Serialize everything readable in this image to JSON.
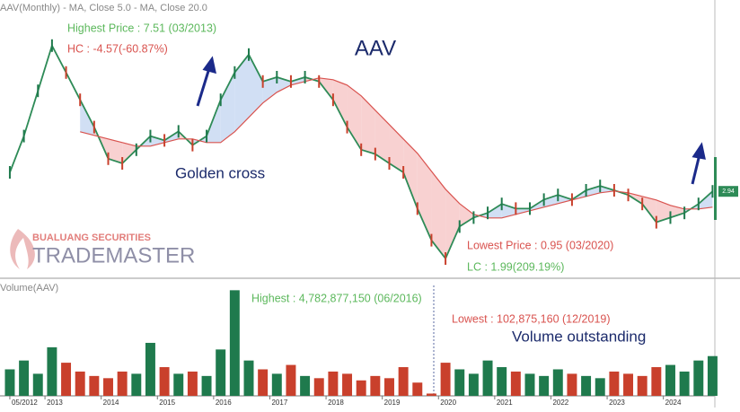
{
  "header": "AAV(Monthly) - MA, Close 5.0 - MA, Close 20.0",
  "volume_header": "Volume(AAV)",
  "watermark": {
    "line1": "BUALUANG SECURITIES",
    "line2": "TRADEMASTER"
  },
  "chart_data": [
    {
      "type": "line",
      "title": "AAV",
      "x": [
        2012.375,
        2012.625,
        2012.875,
        2013.125,
        2013.375,
        2013.625,
        2013.875,
        2014.125,
        2014.375,
        2014.625,
        2014.875,
        2015.125,
        2015.375,
        2015.625,
        2015.875,
        2016.125,
        2016.375,
        2016.625,
        2016.875,
        2017.125,
        2017.375,
        2017.625,
        2017.875,
        2018.125,
        2018.375,
        2018.625,
        2018.875,
        2019.125,
        2019.375,
        2019.625,
        2019.875,
        2020.125,
        2020.375,
        2020.625,
        2020.875,
        2021.125,
        2021.375,
        2021.625,
        2021.875,
        2022.125,
        2022.375,
        2022.625,
        2022.875,
        2023.125,
        2023.375,
        2023.625,
        2023.875,
        2024.125,
        2024.375,
        2024.625,
        2024.875
      ],
      "series": [
        {
          "color": "#2e8b57",
          "values": [
            3.47,
            4.48,
            5.74,
            7.0,
            6.25,
            5.49,
            4.73,
            3.85,
            3.72,
            4.1,
            4.48,
            4.36,
            4.61,
            4.23,
            4.48,
            5.49,
            6.25,
            6.75,
            6.0,
            6.12,
            6.0,
            6.12,
            6.0,
            5.49,
            4.73,
            4.1,
            3.98,
            3.72,
            3.47,
            2.46,
            1.58,
            1.07,
            1.96,
            2.21,
            2.34,
            2.59,
            2.46,
            2.46,
            2.71,
            2.84,
            2.71,
            2.97,
            3.09,
            2.97,
            2.84,
            2.59,
            2.08,
            2.21,
            2.34,
            2.59,
            2.94
          ]
        },
        {
          "name": "MA, Close 20.0",
          "color": "#d9534f",
          "values": [
            null,
            null,
            null,
            null,
            null,
            4.6,
            4.5,
            4.4,
            4.3,
            4.2,
            4.2,
            4.3,
            4.4,
            4.4,
            4.3,
            4.3,
            4.6,
            5.0,
            5.4,
            5.7,
            5.9,
            6.0,
            6.1,
            6.05,
            5.9,
            5.6,
            5.2,
            4.8,
            4.4,
            4.0,
            3.5,
            3.0,
            2.6,
            2.3,
            2.2,
            2.2,
            2.3,
            2.4,
            2.5,
            2.6,
            2.7,
            2.8,
            2.9,
            2.95,
            2.9,
            2.8,
            2.7,
            2.55,
            2.45,
            2.45,
            2.5
          ]
        }
      ],
      "fill_below_color": "#f7c9c9",
      "fill_above_color": "#c9d9f2",
      "xlim": [
        2012.2,
        2024.9
      ],
      "ylim": [
        0.57,
        8.27
      ],
      "xticks": [
        {
          "value": 2012.375,
          "label": "05/2012"
        },
        2013,
        2014,
        2015,
        2016,
        2017,
        2018,
        2019,
        2020,
        2021,
        2022,
        2023,
        2024
      ],
      "annotations": {
        "highest": "Highest Price : 7.51 (03/2013)",
        "hc": "HC : -4.57(-60.87%)",
        "golden_cross": "Golden cross",
        "lowest": "Lowest Price : 0.95 (03/2020)",
        "lc": "LC : 1.99(209.19%)"
      }
    },
    {
      "type": "bar",
      "x": [
        2012.375,
        2012.625,
        2012.875,
        2013.125,
        2013.375,
        2013.625,
        2013.875,
        2014.125,
        2014.375,
        2014.625,
        2014.875,
        2015.125,
        2015.375,
        2015.625,
        2015.875,
        2016.125,
        2016.375,
        2016.625,
        2016.875,
        2017.125,
        2017.375,
        2017.625,
        2017.875,
        2018.125,
        2018.375,
        2018.625,
        2018.875,
        2019.125,
        2019.375,
        2019.625,
        2019.875,
        2020.125,
        2020.375,
        2020.625,
        2020.875,
        2021.125,
        2021.375,
        2021.625,
        2021.875,
        2022.125,
        2022.375,
        2022.625,
        2022.875,
        2023.125,
        2023.375,
        2023.625,
        2023.875,
        2024.125,
        2024.375,
        2024.625,
        2024.875
      ],
      "values": [
        1200000000,
        1600000000,
        1000000000,
        2200000000,
        1500000000,
        1100000000,
        900000000,
        800000000,
        1100000000,
        1000000000,
        2400000000,
        1300000000,
        1000000000,
        1100000000,
        900000000,
        2100000000,
        4782877150,
        1600000000,
        1200000000,
        1000000000,
        1400000000,
        900000000,
        800000000,
        1100000000,
        1000000000,
        700000000,
        900000000,
        800000000,
        1300000000,
        600000000,
        102875160,
        1500000000,
        1200000000,
        1000000000,
        1600000000,
        1300000000,
        1100000000,
        1000000000,
        900000000,
        1200000000,
        1000000000,
        900000000,
        800000000,
        1100000000,
        1000000000,
        900000000,
        1300000000,
        1400000000,
        1100000000,
        1600000000,
        1800000000
      ],
      "up_color": "#1f7a4d",
      "down_color": "#c9402c",
      "xlim": [
        2012.2,
        2024.9
      ],
      "ylim": [
        0,
        5000000000
      ],
      "annotations": {
        "highest": "Highest : 4,782,877,150 (06/2016)",
        "lowest": "Lowest : 102,875,160 (12/2019)",
        "outstanding": "Volume outstanding"
      }
    }
  ]
}
